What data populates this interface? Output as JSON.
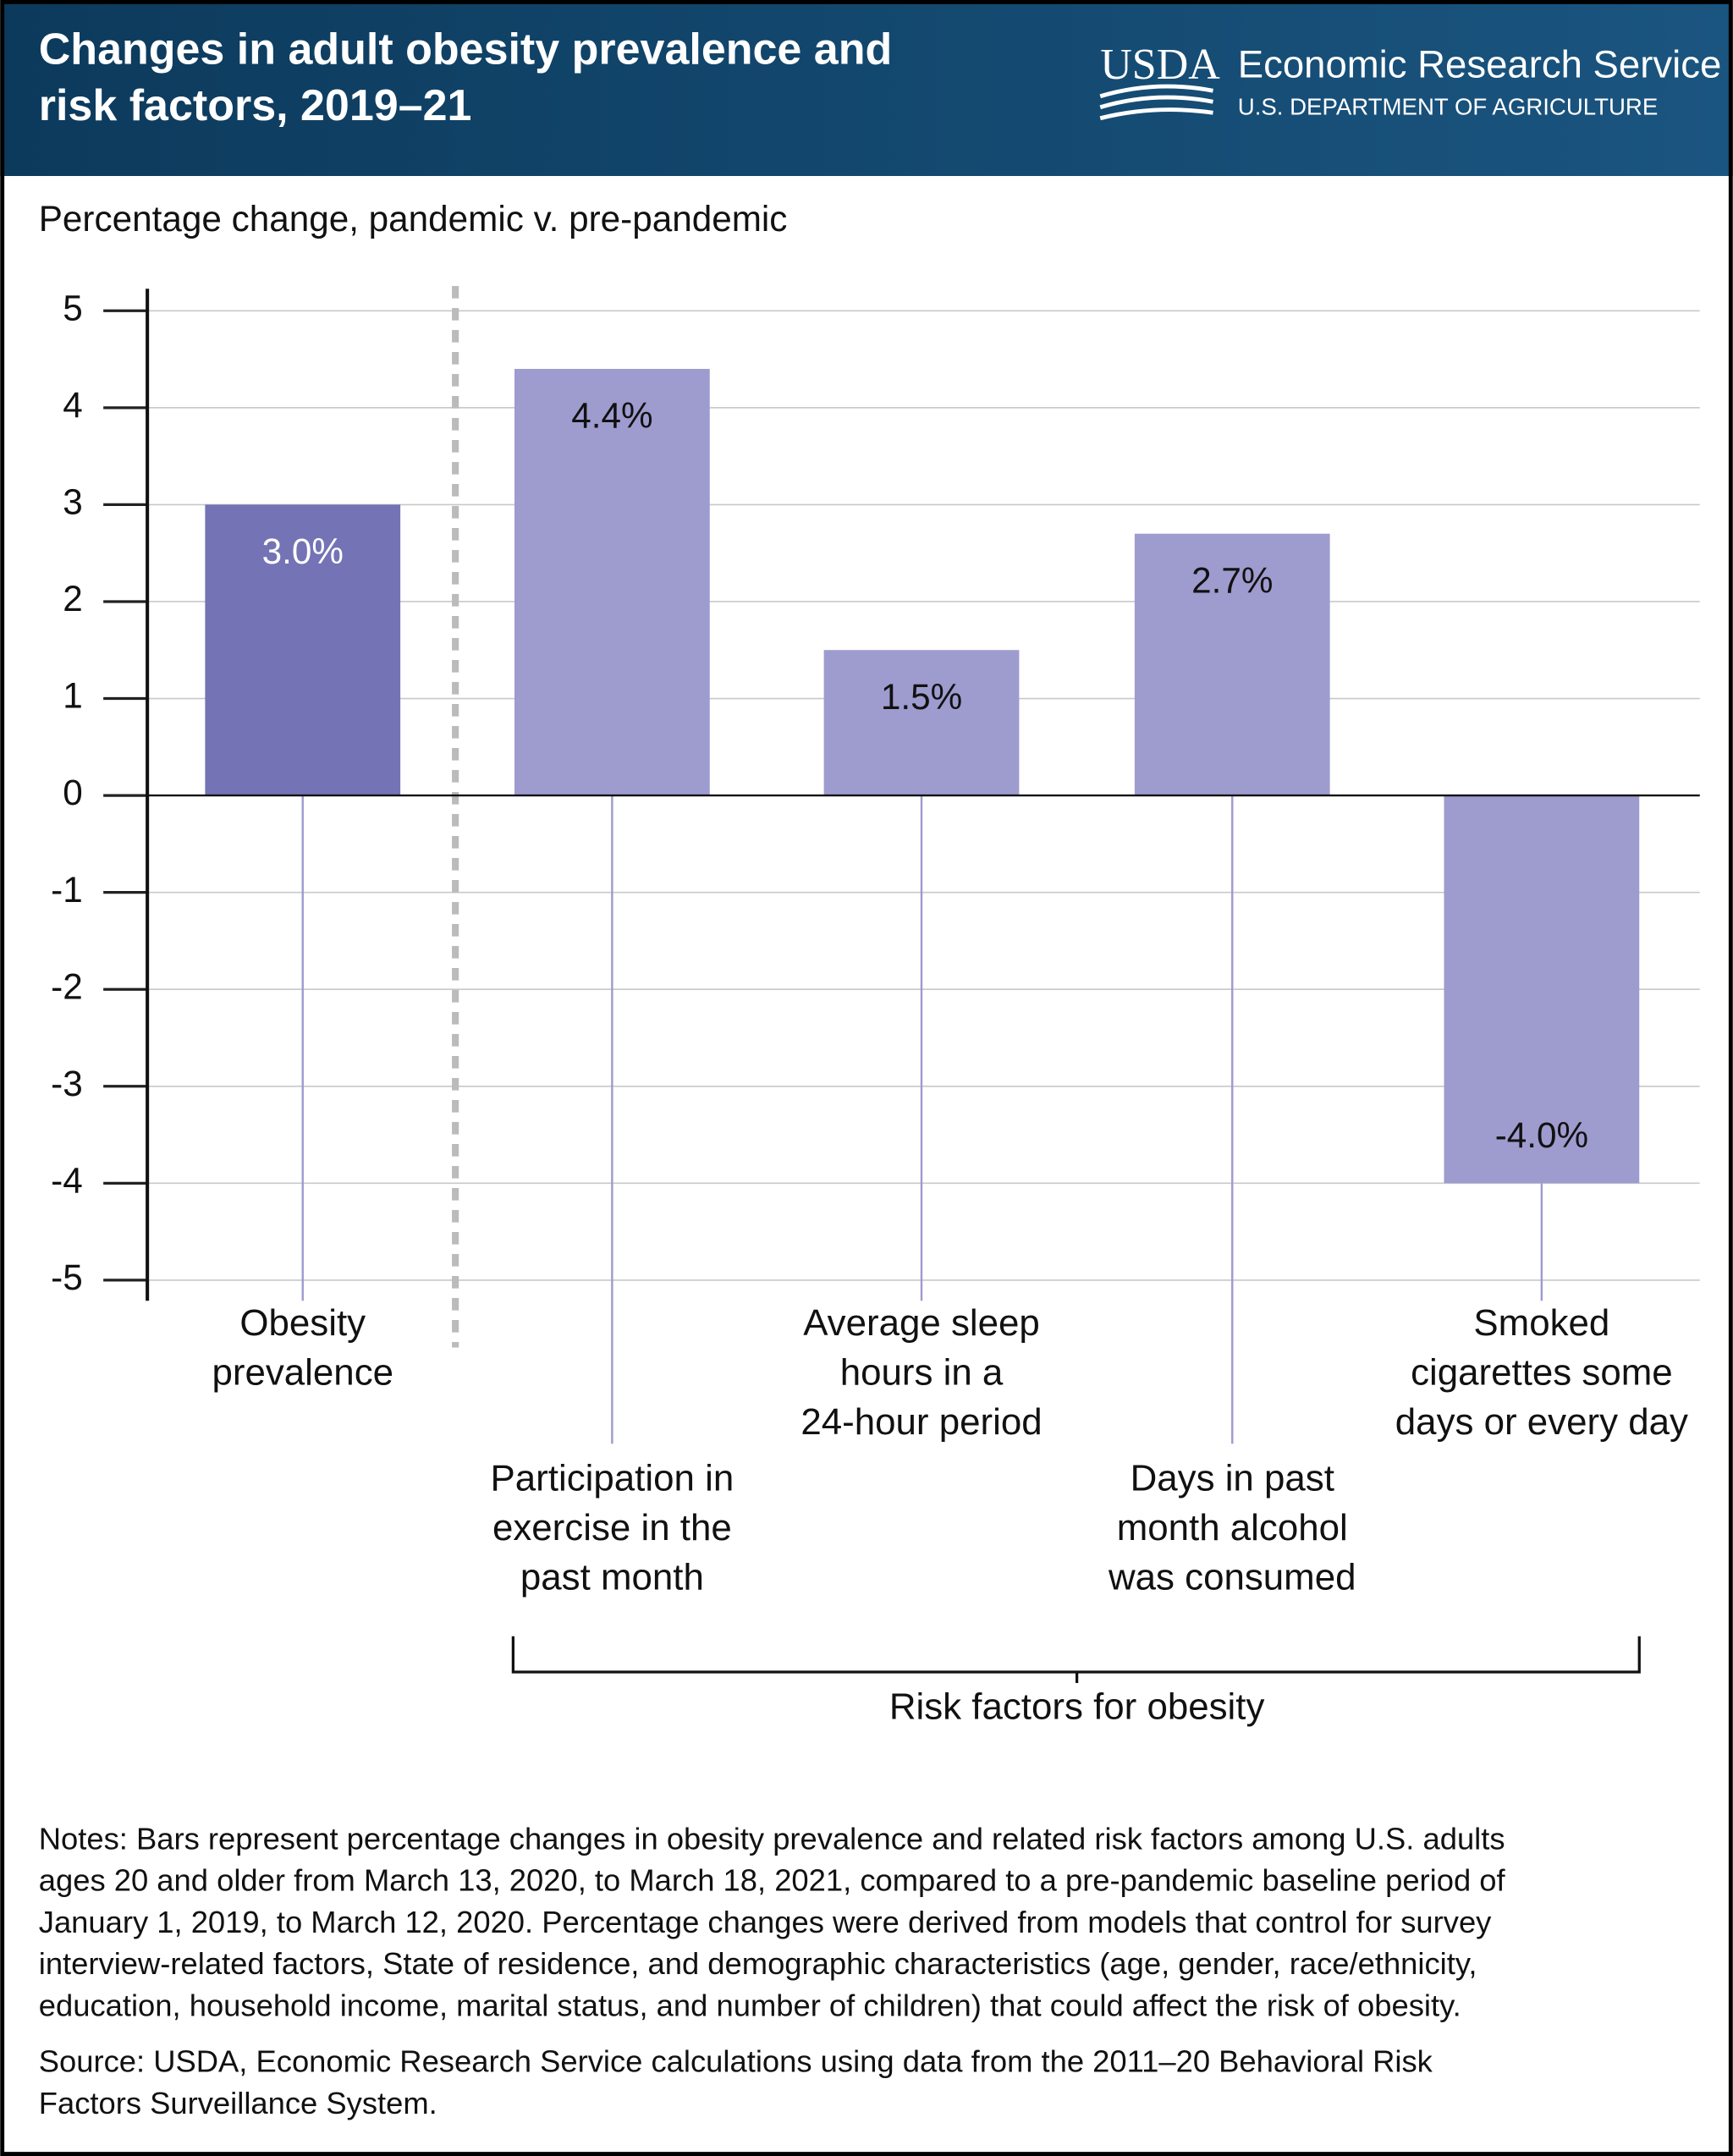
{
  "chart_data": {
    "type": "bar",
    "title": [
      "Changes in adult obesity prevalence and",
      "risk factors, 2019–21"
    ],
    "logo": "USDA",
    "agency": "Economic Research Service",
    "department": "U.S. DEPARTMENT OF AGRICULTURE",
    "y_axis_label": "Percentage change, pandemic v. pre-pandemic",
    "categories": [
      [
        "Obesity",
        "prevalence"
      ],
      [
        "Participation in",
        "exercise in the",
        "past month"
      ],
      [
        "Average sleep",
        "hours in a",
        "24-hour period"
      ],
      [
        "Days in past",
        "month alcohol",
        "was consumed"
      ],
      [
        "Smoked",
        "cigarettes some",
        "days or every day"
      ]
    ],
    "values": [
      3.0,
      4.4,
      1.5,
      2.7,
      -4.0
    ],
    "value_labels": [
      "3.0%",
      "4.4%",
      "1.5%",
      "2.7%",
      "-4.0%"
    ],
    "colors": [
      "#7473b5",
      "#9e9bcf",
      "#9e9bcf",
      "#9e9bcf",
      "#9e9bcf"
    ],
    "value_label_colors": [
      "#ffffff",
      "#111111",
      "#111111",
      "#111111",
      "#111111"
    ],
    "ylim": [
      -5,
      5
    ],
    "yticks": [
      -5,
      -4,
      -3,
      -2,
      -1,
      0,
      1,
      2,
      3,
      4,
      5
    ],
    "grid": true,
    "group_label": "Risk factors for obesity",
    "notes": [
      "Notes: Bars represent percentage changes in obesity prevalence and related risk factors among U.S. adults",
      "ages 20 and older from March 13, 2020, to March 18, 2021, compared to a pre-pandemic baseline period of",
      "January 1, 2019, to March 12, 2020. Percentage changes were derived from models that control for survey",
      "interview-related factors, State of residence, and demographic characteristics (age, gender, race/ethnicity,",
      "education, household income, marital status, and number of children) that could affect the risk of obesity."
    ],
    "source": [
      "Source: USDA, Economic Research Service calculations using data from the 2011–20 Behavioral Risk",
      "Factors Surveillance System."
    ]
  }
}
